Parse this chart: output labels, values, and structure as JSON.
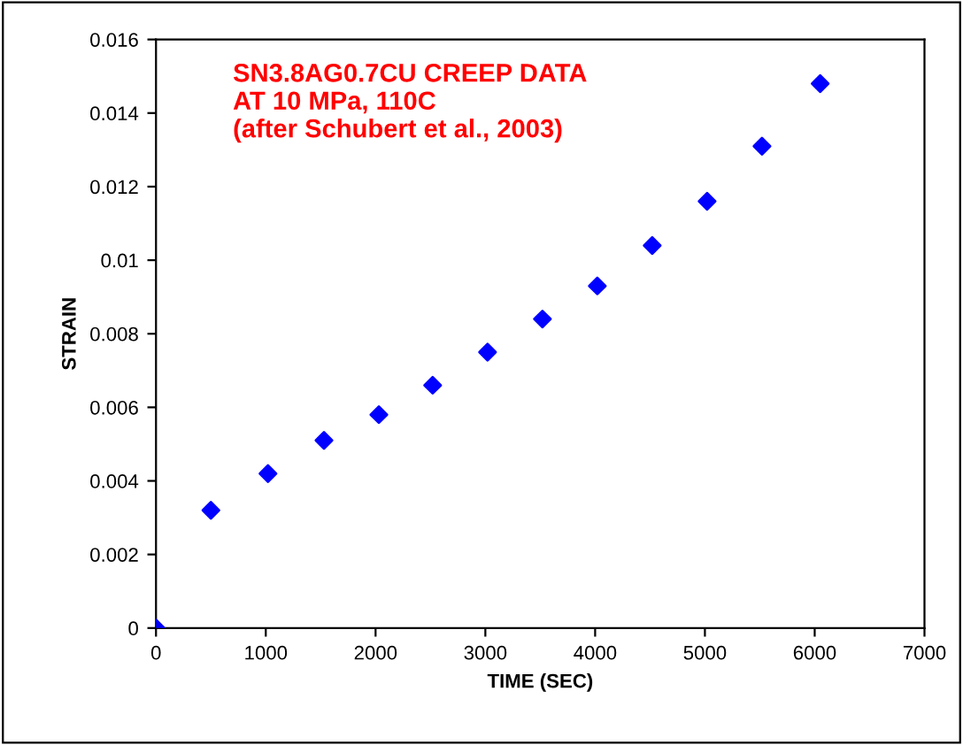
{
  "chart_data": {
    "type": "scatter",
    "title": "SN3.8AG0.7CU CREEP DATA\nAT 10 MPa, 110C\n(after Schubert et al., 2003)",
    "xlabel": "TIME (SEC)",
    "ylabel": "STRAIN",
    "x": [
      0,
      500,
      1020,
      1530,
      2030,
      2520,
      3020,
      3520,
      4020,
      4520,
      5020,
      5520,
      6050
    ],
    "series": [
      {
        "color": "#0000ff",
        "values": [
          0,
          0.0032,
          0.0042,
          0.0051,
          0.0058,
          0.0066,
          0.0075,
          0.0084,
          0.0093,
          0.0104,
          0.0116,
          0.0131,
          0.0148
        ]
      }
    ],
    "xlim": [
      0,
      7000
    ],
    "xticks": [
      0,
      1000,
      2000,
      3000,
      4000,
      5000,
      6000,
      7000
    ],
    "ylim": [
      0,
      0.016
    ],
    "yticks": [
      0,
      0.002,
      0.004,
      0.006,
      0.008,
      0.01,
      0.012,
      0.014,
      0.016
    ],
    "marker": "diamond",
    "grid": false,
    "legend": false
  }
}
